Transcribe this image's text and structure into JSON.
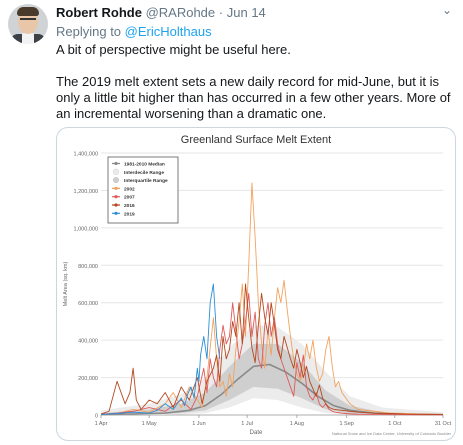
{
  "tweet": {
    "author_name": "Robert Rohde",
    "author_handle": "@RARohde",
    "separator": "·",
    "date": "Jun 14",
    "replying_prefix": "Replying to",
    "replying_handle": "@EricHolthaus",
    "paragraph_1": "A bit of perspective might be useful here.",
    "paragraph_2": "The 2019 melt extent sets a new daily record for mid-June, but it is only a little bit higher than has occurred in a few other years.  More of an incremental worsening than a dramatic one.",
    "menu_icon": "chevron-down-icon"
  },
  "chart_data": {
    "type": "line",
    "title": "Greenland Surface Melt Extent",
    "xlabel": "Date",
    "ylabel": "Melt Area (sq. km)",
    "credit": "National Snow and Ice Data Center, University of Colorado Boulder",
    "x_ticks": [
      "1 Apr",
      "1 May",
      "1 Jun",
      "1 Jul",
      "1 Aug",
      "1 Sep",
      "1 Oct",
      "31 Oct"
    ],
    "x_tick_days": [
      0,
      30,
      61,
      91,
      122,
      153,
      183,
      213
    ],
    "y_ticks": [
      "0",
      "200,000",
      "400,000",
      "600,000",
      "800,000",
      "1,000,000",
      "1,200,000",
      "1,400,000"
    ],
    "ylim": [
      0,
      1400000
    ],
    "xlim_days": [
      0,
      213
    ],
    "legend_position": "top-left",
    "colors": {
      "median": "#8a8a8a",
      "interdecile": "#ececec",
      "interquartile": "#cfcfcf",
      "2002": "#f2a35f",
      "2007": "#e05a5a",
      "2016": "#b5481f",
      "2019": "#2a8fd6"
    },
    "legend": [
      "1981-2010 Median",
      "Interdecile Range",
      "Interquartile Range",
      "2002",
      "2007",
      "2016",
      "2019"
    ],
    "median": {
      "days": [
        0,
        20,
        40,
        55,
        65,
        75,
        85,
        95,
        105,
        115,
        125,
        135,
        145,
        155,
        170,
        190,
        213
      ],
      "values": [
        3000,
        5000,
        10000,
        25000,
        50000,
        110000,
        190000,
        260000,
        270000,
        230000,
        170000,
        100000,
        50000,
        25000,
        10000,
        4000,
        2000
      ]
    },
    "interquartile": {
      "days": [
        0,
        30,
        50,
        65,
        80,
        95,
        110,
        125,
        140,
        155,
        175,
        213
      ],
      "low": [
        0,
        2000,
        10000,
        25000,
        80000,
        150000,
        140000,
        90000,
        30000,
        8000,
        3000,
        0
      ],
      "high": [
        10000,
        30000,
        60000,
        120000,
        260000,
        380000,
        380000,
        280000,
        130000,
        50000,
        15000,
        5000
      ]
    },
    "interdecile": {
      "days": [
        0,
        30,
        50,
        65,
        80,
        95,
        110,
        125,
        140,
        155,
        175,
        213
      ],
      "low": [
        0,
        0,
        3000,
        10000,
        40000,
        90000,
        80000,
        40000,
        10000,
        2000,
        0,
        0
      ],
      "high": [
        25000,
        60000,
        110000,
        200000,
        360000,
        480000,
        470000,
        380000,
        230000,
        100000,
        40000,
        15000
      ]
    },
    "series": [
      {
        "name": "2002",
        "days": [
          0,
          10,
          20,
          30,
          40,
          45,
          50,
          55,
          60,
          63,
          66,
          70,
          72,
          74,
          76,
          78,
          80,
          82,
          84,
          86,
          88,
          90,
          92,
          94,
          96,
          98,
          100,
          102,
          104,
          106,
          108,
          110,
          112,
          114,
          116,
          118,
          120,
          122,
          124,
          126,
          128,
          130,
          132,
          134,
          136,
          138,
          140,
          142,
          144,
          146,
          148,
          150,
          155,
          160,
          170,
          180,
          190,
          200,
          213
        ],
        "values": [
          5000,
          8000,
          30000,
          15000,
          60000,
          120000,
          40000,
          150000,
          80000,
          40000,
          200000,
          520000,
          300000,
          150000,
          180000,
          100000,
          220000,
          150000,
          350000,
          500000,
          700000,
          420000,
          800000,
          1240000,
          950000,
          600000,
          380000,
          250000,
          450000,
          320000,
          520000,
          680000,
          600000,
          720000,
          560000,
          420000,
          300000,
          220000,
          180000,
          240000,
          380000,
          300000,
          400000,
          260000,
          180000,
          220000,
          350000,
          420000,
          260000,
          150000,
          180000,
          120000,
          60000,
          30000,
          20000,
          10000,
          8000,
          5000,
          3000
        ]
      },
      {
        "name": "2007",
        "days": [
          0,
          10,
          20,
          30,
          40,
          50,
          56,
          60,
          64,
          66,
          68,
          70,
          72,
          74,
          76,
          78,
          80,
          82,
          84,
          86,
          88,
          90,
          92,
          94,
          96,
          98,
          100,
          102,
          104,
          106,
          108,
          110,
          112,
          114,
          116,
          118,
          120,
          122,
          124,
          126,
          128,
          130,
          132,
          134,
          136,
          138,
          140,
          142,
          144,
          146,
          150,
          155,
          160,
          170,
          180,
          190,
          200,
          213
        ],
        "values": [
          4000,
          10000,
          20000,
          40000,
          20000,
          80000,
          30000,
          100000,
          250000,
          120000,
          300000,
          200000,
          150000,
          350000,
          480000,
          380000,
          420000,
          600000,
          450000,
          300000,
          380000,
          500000,
          650000,
          420000,
          550000,
          300000,
          250000,
          480000,
          600000,
          420000,
          520000,
          380000,
          300000,
          250000,
          200000,
          150000,
          100000,
          280000,
          200000,
          320000,
          150000,
          100000,
          80000,
          120000,
          60000,
          40000,
          60000,
          30000,
          20000,
          15000,
          10000,
          6000,
          4000,
          3000,
          2000,
          2000,
          1000,
          1000
        ]
      },
      {
        "name": "2016",
        "days": [
          0,
          5,
          10,
          15,
          18,
          20,
          22,
          25,
          30,
          35,
          40,
          45,
          50,
          55,
          60,
          63,
          66,
          70,
          72,
          74,
          76,
          78,
          80,
          82,
          84,
          86,
          88,
          90,
          92,
          94,
          96,
          98,
          100,
          102,
          104,
          106,
          108,
          110,
          112,
          114,
          116,
          118,
          120,
          122,
          124,
          126,
          128,
          130,
          132,
          134,
          136,
          138,
          140,
          142,
          145,
          150,
          155,
          160,
          170,
          180,
          190,
          200,
          213
        ],
        "values": [
          5000,
          20000,
          180000,
          60000,
          120000,
          250000,
          80000,
          30000,
          80000,
          60000,
          120000,
          40000,
          150000,
          80000,
          200000,
          60000,
          180000,
          250000,
          320000,
          180000,
          420000,
          300000,
          350000,
          500000,
          420000,
          600000,
          380000,
          700000,
          520000,
          360000,
          280000,
          480000,
          650000,
          520000,
          430000,
          600000,
          480000,
          350000,
          300000,
          420000,
          360000,
          300000,
          250000,
          350000,
          280000,
          200000,
          260000,
          180000,
          140000,
          100000,
          160000,
          90000,
          60000,
          40000,
          30000,
          25000,
          20000,
          15000,
          10000,
          8000,
          5000,
          4000,
          3000
        ]
      },
      {
        "name": "2019",
        "days": [
          0,
          10,
          20,
          30,
          35,
          40,
          45,
          50,
          52,
          54,
          56,
          58,
          60,
          61,
          62,
          64,
          66,
          68,
          70,
          72,
          74
        ],
        "values": [
          3000,
          8000,
          15000,
          10000,
          25000,
          60000,
          30000,
          90000,
          50000,
          110000,
          150000,
          90000,
          250000,
          180000,
          320000,
          420000,
          300000,
          600000,
          700000,
          420000,
          300000
        ]
      }
    ]
  }
}
